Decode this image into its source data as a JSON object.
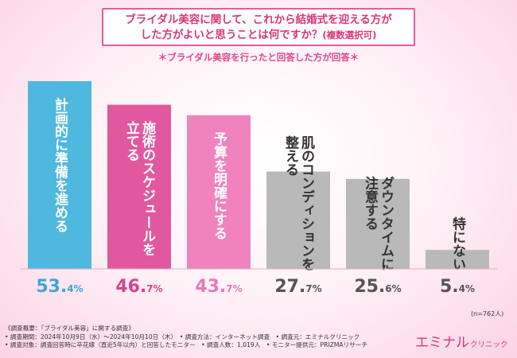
{
  "header": {
    "title_line1": "ブライダル美容に関して、これから結婚式を迎える方が",
    "title_line2": "した方がよいと思うことは何ですか？",
    "title_suffix": "(複数選択可)",
    "subnote": "＊ブライダル美容を行ったと回答した方が回答＊"
  },
  "chart_data": {
    "type": "bar",
    "title": "ブライダル美容に関して、これから結婚式を迎える方がした方がよいと思うことは何ですか？(複数選択可)",
    "categories": [
      "計画的に準備を進める",
      "施術のスケジュールを立てる",
      "予算を明確にする",
      "肌のコンディションを整える",
      "ダウンタイムに注意する",
      "特にない"
    ],
    "label_lines": [
      [
        "計画的に準備を進める"
      ],
      [
        "施術のスケジュールを",
        "立てる"
      ],
      [
        "予算を明確にする"
      ],
      [
        "肌のコンディションを",
        "整える"
      ],
      [
        "ダウンタイムに",
        "注意する"
      ],
      [
        "特にない"
      ]
    ],
    "values": [
      53.4,
      46.7,
      43.7,
      27.7,
      25.6,
      5.4
    ],
    "value_int": [
      "53.",
      "46.",
      "43.",
      "27.",
      "25.",
      "5."
    ],
    "value_dec": [
      "4%",
      "7%",
      "7%",
      "7%",
      "6%",
      "4%"
    ],
    "colors": [
      "#4fb8de",
      "#e2589f",
      "#f083bd",
      "#b9b9b9",
      "#b9b9b9",
      "#b9b9b9"
    ],
    "value_colors": [
      "#3aa7d4",
      "#d9428d",
      "#ea78b4",
      "#555555",
      "#555555",
      "#555555"
    ],
    "label_colors": [
      "#ffffff",
      "#ffffff",
      "#ffffff",
      "#333333",
      "#333333",
      "#333333"
    ],
    "ylim": [
      0,
      53.4
    ],
    "xlabel": "",
    "ylabel": ""
  },
  "sample_note": "(n=762人)",
  "footer": {
    "line1": "《調査概要：「ブライダル美容」に関する調査》",
    "line2": "• 調査期間：2024年10月9日（水）〜2024年10月10日（木）　• 調査方法：インターネット調査　• 調査元：エミナルクリニック",
    "line3": "• 調査対象：調査回答時に卒花嫁（直近5年以内）と回答したモニター　• 調査人数：1,019人　• モニター提供元：PRIZMAリサーチ"
  },
  "logo": {
    "main": "エミナル",
    "sub": "クリニック"
  }
}
